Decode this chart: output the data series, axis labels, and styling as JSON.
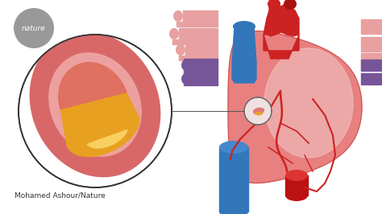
{
  "bg_color": "#ffffff",
  "nature_badge_color": "#999999",
  "nature_text": "nature",
  "nature_text_color": "#ffffff",
  "credit_text": "Mohamed Ashour/Nature",
  "credit_fontsize": 6.5,
  "heart_main_color": "#e88080",
  "heart_light_color": "#f5b0b0",
  "heart_highlight_color": "#f0c8c8",
  "heart_dark_color": "#cc3333",
  "heart_vein_color": "#cc2222",
  "heart_outline_color": "#cc4444",
  "aorta_red": "#cc2222",
  "aorta_dark": "#aa1111",
  "pa_blue": "#3377bb",
  "pa_blue_light": "#4488cc",
  "vein_purple": "#775599",
  "vessel_pink": "#e8a0a0",
  "vena_cava_blue": "#2255aa",
  "desc_aorta_red": "#bb1111",
  "artery_outer": "#e07070",
  "artery_wall": "#e89090",
  "artery_inner_wall": "#e8a8a8",
  "artery_lumen": "#d06050",
  "plaque_orange": "#e8a020",
  "plaque_yellow": "#f8d060",
  "small_circle_fill": "#f0e0e0"
}
